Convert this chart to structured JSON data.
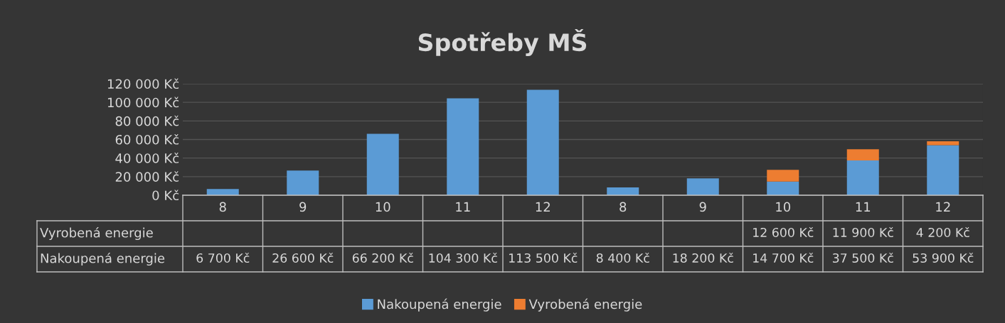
{
  "chart_data": {
    "type": "bar",
    "title": "Spotřeby MŠ",
    "stacked": true,
    "categories": [
      "8",
      "9",
      "10",
      "11",
      "12",
      "8",
      "9",
      "10",
      "11",
      "12"
    ],
    "series": [
      {
        "name": "Nakoupená energie",
        "color": "#5b9bd5",
        "values": [
          6700,
          26600,
          66200,
          104300,
          113500,
          8400,
          18200,
          14700,
          37500,
          53900
        ],
        "value_labels": [
          "6 700 Kč",
          "26 600 Kč",
          "66 200 Kč",
          "104 300 Kč",
          "113 500 Kč",
          "8 400 Kč",
          "18 200 Kč",
          "14 700 Kč",
          "37 500 Kč",
          "53 900 Kč"
        ]
      },
      {
        "name": "Vyrobená energie",
        "color": "#ed7d31",
        "values": [
          null,
          null,
          null,
          null,
          null,
          null,
          null,
          12600,
          11900,
          4200
        ],
        "value_labels": [
          null,
          null,
          null,
          null,
          null,
          null,
          null,
          "12 600 Kč",
          "11 900 Kč",
          "4 200 Kč"
        ]
      }
    ],
    "ylim": [
      0,
      120000
    ],
    "yticks": [
      {
        "value": 0,
        "label": "0 Kč"
      },
      {
        "value": 20000,
        "label": "20 000 Kč"
      },
      {
        "value": 40000,
        "label": "40 000 Kč"
      },
      {
        "value": 60000,
        "label": "60 000 Kč"
      },
      {
        "value": 80000,
        "label": "80 000 Kč"
      },
      {
        "value": 100000,
        "label": "100 000 Kč"
      },
      {
        "value": 120000,
        "label": "120 000 Kč"
      }
    ],
    "grid": "y",
    "legend": "bottom"
  }
}
